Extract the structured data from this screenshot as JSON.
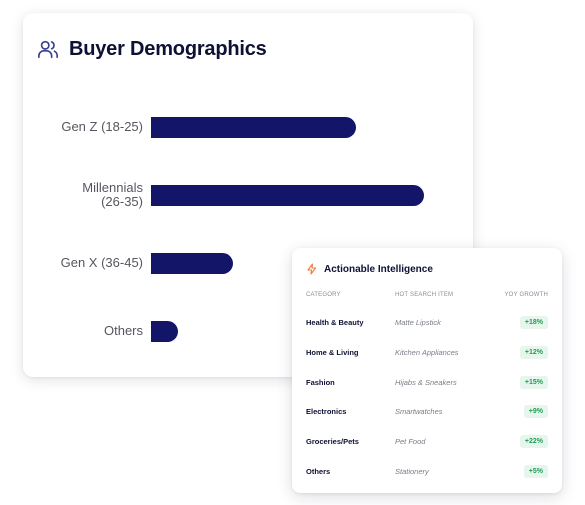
{
  "demographics": {
    "title": "Buyer Demographics",
    "icon": "users-icon"
  },
  "chart_data": {
    "type": "bar",
    "orientation": "horizontal",
    "categories": [
      "Gen Z (18-25)",
      "Millennials\n(26-35)",
      "Gen X (36-45)",
      "Others"
    ],
    "values": [
      30,
      40,
      12,
      4
    ],
    "xlim": [
      0,
      44
    ],
    "grid": false,
    "bar_color": "#121568"
  },
  "intel": {
    "title": "Actionable Intelligence",
    "icon": "lightning-icon",
    "accent": "#f07a3a",
    "columns": {
      "category": "Category",
      "item": "Hot Search Item",
      "growth": "YoY Growth"
    },
    "rows": [
      {
        "category": "Health & Beauty",
        "item": "Matte Lipstick",
        "growth": "+18%"
      },
      {
        "category": "Home & Living",
        "item": "Kitchen Appliances",
        "growth": "+12%"
      },
      {
        "category": "Fashion",
        "item": "Hijabs & Sneakers",
        "growth": "+15%"
      },
      {
        "category": "Electronics",
        "item": "Smartwatches",
        "growth": "+9%"
      },
      {
        "category": "Groceries/Pets",
        "item": "Pet Food",
        "growth": "+22%"
      },
      {
        "category": "Others",
        "item": "Stationery",
        "growth": "+5%"
      }
    ]
  }
}
